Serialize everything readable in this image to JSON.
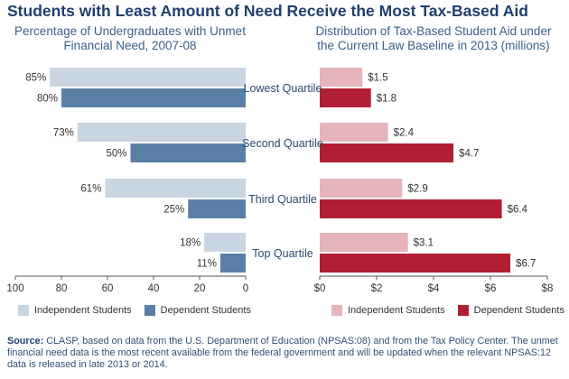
{
  "title": "Students with Least Amount of Need Receive the Most Tax-Based Aid",
  "colors": {
    "title": "#1f3f6e",
    "subtitle": "#3a5f87",
    "independent_left": "#c9d5e2",
    "dependent_left": "#5a7fa6",
    "independent_right": "#e6b4bb",
    "dependent_right": "#b01f33"
  },
  "legend": {
    "left": {
      "independent": "Independent Students",
      "dependent": "Dependent Students"
    },
    "right": {
      "independent": "Independent Students",
      "dependent": "Dependent Students"
    }
  },
  "source": {
    "label": "Source:",
    "text": "CLASP, based on data from the U.S. Department of Education (NPSAS:08) and from the Tax Policy Center. The unmet financial need data is the most recent available from the federal government and will be updated when the relevant NPSAS:12 data is released in late 2013 or 2014."
  },
  "chart_data": [
    {
      "type": "bar",
      "orientation": "horizontal",
      "direction": "right-to-left",
      "title": "Percentage of Undergraduates with Unmet Financial Need, 2007-08",
      "categories": [
        "Lowest Quartile",
        "Second Quartile",
        "Third Quartile",
        "Top Quartile"
      ],
      "series": [
        {
          "name": "Independent Students",
          "values": [
            85,
            73,
            61,
            18
          ],
          "labels": [
            "85%",
            "73%",
            "61%",
            "18%"
          ]
        },
        {
          "name": "Dependent Students",
          "values": [
            80,
            50,
            25,
            11
          ],
          "labels": [
            "80%",
            "50%",
            "25%",
            "11%"
          ]
        }
      ],
      "xlim": [
        0,
        100
      ],
      "ticks": [
        100,
        80,
        60,
        40,
        20,
        0
      ],
      "tick_labels": [
        "100",
        "80",
        "60",
        "40",
        "20",
        "0"
      ],
      "legend_position": "bottom",
      "grid": false
    },
    {
      "type": "bar",
      "orientation": "horizontal",
      "title": "Distribution of Tax-Based Student Aid under the Current Law Baseline in 2013 (millions)",
      "categories": [
        "Lowest Quartile",
        "Second Quartile",
        "Third Quartile",
        "Top Quartile"
      ],
      "series": [
        {
          "name": "Independent Students",
          "values": [
            1.5,
            2.4,
            2.9,
            3.1
          ],
          "labels": [
            "$1.5",
            "$2.4",
            "$2.9",
            "$3.1"
          ]
        },
        {
          "name": "Dependent Students",
          "values": [
            1.8,
            4.7,
            6.4,
            6.7
          ],
          "labels": [
            "$1.8",
            "$4.7",
            "$6.4",
            "$6.7"
          ]
        }
      ],
      "xlim": [
        0,
        8
      ],
      "ticks": [
        0,
        2,
        4,
        6,
        8
      ],
      "tick_labels": [
        "$0",
        "$2",
        "$4",
        "$6",
        "$8"
      ],
      "legend_position": "bottom",
      "grid": false
    }
  ]
}
